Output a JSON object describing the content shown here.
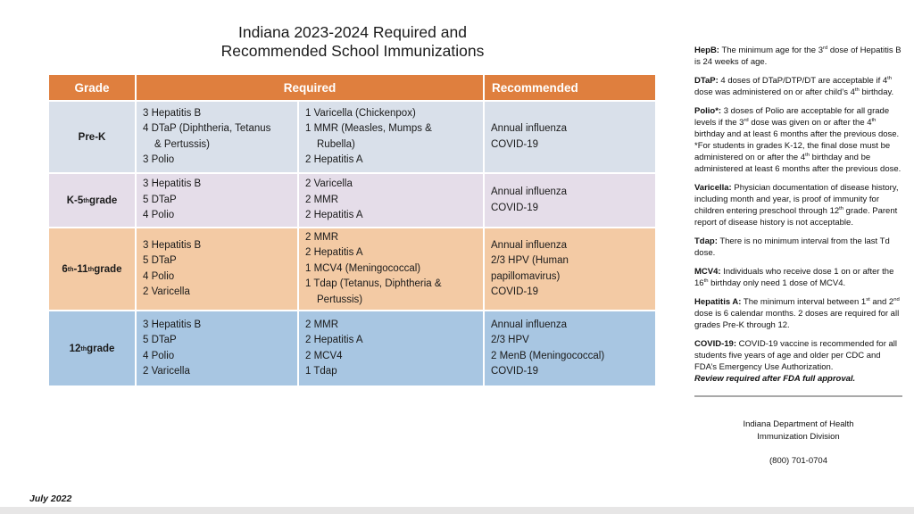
{
  "title": {
    "line1": "Indiana 2023-2024 Required and",
    "line2": "Recommended School Immunizations"
  },
  "table": {
    "header_color": "#DF7F3E",
    "headers": {
      "grade": "Grade",
      "required": "Required",
      "recommended": "Recommended"
    },
    "rows": [
      {
        "grade": "Pre-K",
        "row_color": "#D9E0EA",
        "required_col1": [
          "3 Hepatitis B",
          "4 DTaP (Diphtheria, Tetanus\n& Pertussis)",
          "3 Polio"
        ],
        "required_col2": [
          "1 Varicella (Chickenpox)",
          "1 MMR (Measles, Mumps &\nRubella)",
          "2 Hepatitis A"
        ],
        "recommended": [
          "Annual influenza",
          "COVID-19"
        ]
      },
      {
        "grade": "K-5^{th} grade",
        "row_color": "#E5DDE9",
        "required_col1": [
          "3 Hepatitis B",
          "5 DTaP",
          "4 Polio"
        ],
        "required_col2": [
          "2 Varicella",
          "2 MMR",
          "2 Hepatitis A"
        ],
        "recommended": [
          "Annual influenza",
          "COVID-19"
        ]
      },
      {
        "grade": "6^{th}-11^{th} grade",
        "row_color": "#F3CAA4",
        "required_col1": [
          "3 Hepatitis B",
          "5 DTaP",
          "4 Polio",
          "2 Varicella"
        ],
        "required_col2": [
          "2 MMR",
          "2 Hepatitis A",
          "1 MCV4 (Meningococcal)",
          "1 Tdap (Tetanus, Diphtheria &\nPertussis)"
        ],
        "recommended": [
          "Annual influenza",
          "2/3 HPV (Human\npapillomavirus)",
          "COVID-19"
        ]
      },
      {
        "grade": "12^{th} grade",
        "row_color": "#A8C6E2",
        "required_col1": [
          "3 Hepatitis B",
          "5 DTaP",
          "4 Polio",
          "2 Varicella"
        ],
        "required_col2": [
          "2 MMR",
          "2 Hepatitis A",
          "2 MCV4",
          "1 Tdap"
        ],
        "recommended": [
          "Annual influenza",
          "2/3 HPV",
          "2 MenB (Meningococcal)",
          "COVID-19"
        ]
      }
    ]
  },
  "notes": [
    {
      "label": "HepB:",
      "text": "The minimum age for the 3^{rd} dose of Hepatitis B is 24 weeks of age."
    },
    {
      "label": "DTaP:",
      "text": "4 doses of DTaP/DTP/DT are acceptable if 4^{th} dose was administered on or after child’s 4^{th} birthday."
    },
    {
      "label": "Polio*:",
      "text": "3 doses of Polio are acceptable for all grade levels if the 3^{rd} dose was given on or after the 4^{th} birthday and at least 6 months after the previous dose.\n*For students in grades K-12, the final dose must be administered on or after the 4^{th} birthday and be administered at least 6 months after the previous dose."
    },
    {
      "label": "Varicella:",
      "text": "Physician documentation of disease history, including month and year, is proof of immunity for children entering preschool through 12^{th} grade. Parent report of disease history is not acceptable."
    },
    {
      "label": "Tdap:",
      "text": "There is no minimum interval from the last Td dose."
    },
    {
      "label": "MCV4:",
      "text": "Individuals who receive dose 1 on or after the 16^{th} birthday only need 1 dose of MCV4."
    },
    {
      "label": "Hepatitis A:",
      "text": "The minimum interval between 1^{st} and 2^{nd} dose is 6 calendar months. 2 doses are required for all grades Pre-K through 12."
    },
    {
      "label": "COVID-19:",
      "text": "COVID-19 vaccine is recommended for all students five years of age and older per CDC and FDA’s Emergency Use Authorization.",
      "italic": "Review required after FDA full approval."
    }
  ],
  "footer": {
    "org_line1": "Indiana Department of Health",
    "org_line2": "Immunization Division",
    "phone": "(800) 701-0704",
    "date": "July 2022"
  }
}
